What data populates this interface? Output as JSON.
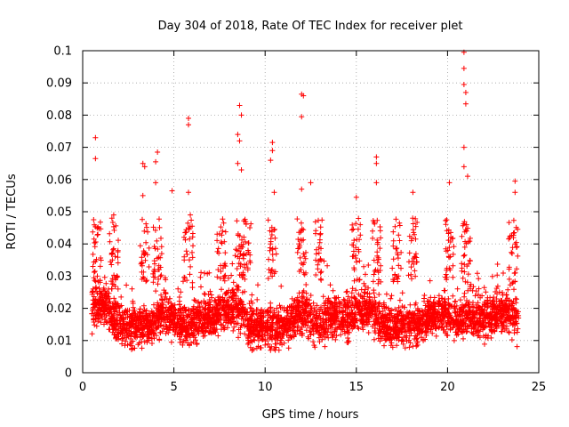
{
  "chart_data": {
    "type": "scatter",
    "title": "Day 304 of 2018, Rate Of TEC Index for receiver plet",
    "xlabel": "GPS time / hours",
    "ylabel": "ROTI / TECUs",
    "xlim": [
      0,
      25
    ],
    "ylim": [
      0,
      0.1
    ],
    "x_ticks": [
      0,
      5,
      10,
      15,
      20,
      25
    ],
    "y_ticks": [
      0,
      0.01,
      0.02,
      0.03,
      0.04,
      0.05,
      0.06,
      0.07,
      0.08,
      0.09,
      0.1
    ],
    "x_tick_labels": [
      "0",
      "5",
      "10",
      "15",
      "20",
      "25"
    ],
    "y_tick_labels": [
      "0",
      "0.01",
      "0.02",
      "0.03",
      "0.04",
      "0.05",
      "0.06",
      "0.07",
      "0.08",
      "0.09",
      "0.1"
    ],
    "grid": true,
    "marker": "+",
    "marker_color": "#ff0000",
    "series": [
      {
        "name": "ROTI",
        "data_extent": {
          "x_min": 0.5,
          "x_max": 23.9,
          "typical_y_min": 0.005,
          "typical_y_max": 0.03
        },
        "notable_points": [
          {
            "x": 0.6,
            "y": 0.0475
          },
          {
            "x": 0.7,
            "y": 0.073
          },
          {
            "x": 0.7,
            "y": 0.0665
          },
          {
            "x": 1.6,
            "y": 0.048
          },
          {
            "x": 1.7,
            "y": 0.049
          },
          {
            "x": 3.3,
            "y": 0.065
          },
          {
            "x": 3.4,
            "y": 0.064
          },
          {
            "x": 3.3,
            "y": 0.055
          },
          {
            "x": 4.1,
            "y": 0.0685
          },
          {
            "x": 4.0,
            "y": 0.0655
          },
          {
            "x": 4.0,
            "y": 0.059
          },
          {
            "x": 4.9,
            "y": 0.0565
          },
          {
            "x": 5.8,
            "y": 0.079
          },
          {
            "x": 5.8,
            "y": 0.077
          },
          {
            "x": 5.8,
            "y": 0.056
          },
          {
            "x": 5.9,
            "y": 0.049
          },
          {
            "x": 8.6,
            "y": 0.083
          },
          {
            "x": 8.7,
            "y": 0.08
          },
          {
            "x": 8.5,
            "y": 0.074
          },
          {
            "x": 8.6,
            "y": 0.072
          },
          {
            "x": 8.5,
            "y": 0.065
          },
          {
            "x": 8.7,
            "y": 0.063
          },
          {
            "x": 10.4,
            "y": 0.0715
          },
          {
            "x": 10.4,
            "y": 0.069
          },
          {
            "x": 10.3,
            "y": 0.066
          },
          {
            "x": 10.5,
            "y": 0.056
          },
          {
            "x": 12.0,
            "y": 0.0865
          },
          {
            "x": 12.1,
            "y": 0.086
          },
          {
            "x": 12.0,
            "y": 0.0795
          },
          {
            "x": 12.0,
            "y": 0.057
          },
          {
            "x": 12.5,
            "y": 0.059
          },
          {
            "x": 15.0,
            "y": 0.0545
          },
          {
            "x": 16.1,
            "y": 0.067
          },
          {
            "x": 16.1,
            "y": 0.065
          },
          {
            "x": 16.1,
            "y": 0.059
          },
          {
            "x": 18.1,
            "y": 0.056
          },
          {
            "x": 20.1,
            "y": 0.059
          },
          {
            "x": 20.9,
            "y": 0.0995
          },
          {
            "x": 20.9,
            "y": 0.0945
          },
          {
            "x": 20.9,
            "y": 0.0895
          },
          {
            "x": 21.0,
            "y": 0.087
          },
          {
            "x": 21.0,
            "y": 0.0835
          },
          {
            "x": 20.9,
            "y": 0.07
          },
          {
            "x": 20.9,
            "y": 0.064
          },
          {
            "x": 21.1,
            "y": 0.061
          },
          {
            "x": 23.7,
            "y": 0.0595
          },
          {
            "x": 23.7,
            "y": 0.056
          },
          {
            "x": 23.7,
            "y": 0.04
          }
        ]
      }
    ]
  }
}
